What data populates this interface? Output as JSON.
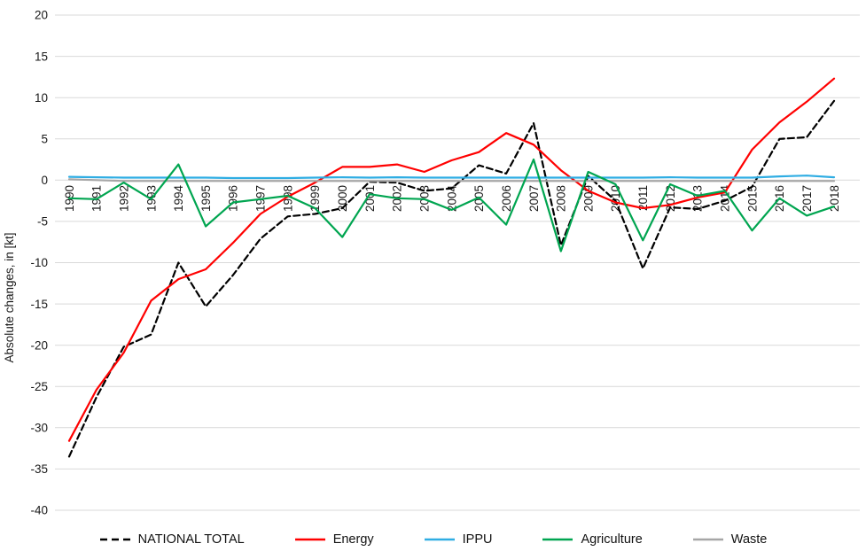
{
  "chart_data": {
    "type": "line",
    "title": "",
    "ylabel": "Absolute changes, in [kt]",
    "xlabel": "",
    "x": [
      "1990",
      "1991",
      "1992",
      "1993",
      "1994",
      "1995",
      "1996",
      "1997",
      "1998",
      "1999",
      "2000",
      "2001",
      "2002",
      "2003",
      "2004",
      "2005",
      "2006",
      "2007",
      "2008",
      "2009",
      "2010",
      "2011",
      "2012",
      "2013",
      "2014",
      "2015",
      "2016",
      "2017",
      "2018"
    ],
    "ylim": [
      -40,
      20
    ],
    "yticks": [
      20,
      15,
      10,
      5,
      0,
      -5,
      -10,
      -15,
      -20,
      -25,
      -30,
      -35,
      -40
    ],
    "grid": true,
    "legend_position": "bottom",
    "series": [
      {
        "name": "NATIONAL TOTAL",
        "color": "#000000",
        "style": "dashed",
        "values": [
          -33.5,
          -26.3,
          -20.2,
          -18.7,
          -10.0,
          -15.3,
          -11.5,
          -7.1,
          -4.4,
          -4.1,
          -3.4,
          -0.2,
          -0.3,
          -1.3,
          -1.0,
          1.8,
          0.8,
          6.9,
          -7.9,
          0.5,
          -2.5,
          -10.7,
          -3.3,
          -3.5,
          -2.5,
          -0.8,
          5.0,
          5.2,
          9.6
        ]
      },
      {
        "name": "Energy",
        "color": "#ff0000",
        "style": "solid",
        "values": [
          -31.6,
          -25.4,
          -20.9,
          -14.6,
          -12.0,
          -10.8,
          -7.6,
          -4.1,
          -2.0,
          -0.3,
          1.6,
          1.6,
          1.9,
          1.0,
          2.4,
          3.4,
          5.7,
          4.3,
          1.2,
          -1.3,
          -2.7,
          -3.4,
          -3.0,
          -2.1,
          -1.5,
          3.7,
          7.0,
          9.5,
          12.3
        ]
      },
      {
        "name": "IPPU",
        "color": "#2fade3",
        "style": "solid",
        "values": [
          0.4,
          0.35,
          0.3,
          0.3,
          0.3,
          0.3,
          0.25,
          0.25,
          0.25,
          0.3,
          0.35,
          0.3,
          0.35,
          0.3,
          0.3,
          0.3,
          0.3,
          0.3,
          0.3,
          0.3,
          0.3,
          0.3,
          0.35,
          0.3,
          0.3,
          0.3,
          0.45,
          0.55,
          0.35
        ]
      },
      {
        "name": "Agriculture",
        "color": "#00a550",
        "style": "solid",
        "values": [
          -2.2,
          -2.3,
          -0.3,
          -2.3,
          1.9,
          -5.6,
          -2.7,
          -2.3,
          -1.9,
          -3.4,
          -6.9,
          -1.7,
          -2.2,
          -2.3,
          -3.6,
          -2.1,
          -5.4,
          2.5,
          -8.6,
          1.0,
          -0.5,
          -7.3,
          -0.5,
          -1.9,
          -1.3,
          -6.1,
          -2.2,
          -4.3,
          -3.2
        ]
      },
      {
        "name": "Waste",
        "color": "#a6a6a6",
        "style": "solid",
        "values": [
          0.1,
          0.0,
          -0.1,
          -0.1,
          -0.1,
          -0.1,
          -0.1,
          -0.1,
          -0.1,
          -0.1,
          -0.1,
          -0.1,
          -0.1,
          -0.1,
          -0.1,
          -0.1,
          -0.1,
          -0.1,
          -0.1,
          -0.1,
          -0.1,
          -0.1,
          -0.1,
          -0.1,
          -0.1,
          -0.1,
          -0.1,
          -0.1,
          -0.1
        ]
      }
    ]
  }
}
